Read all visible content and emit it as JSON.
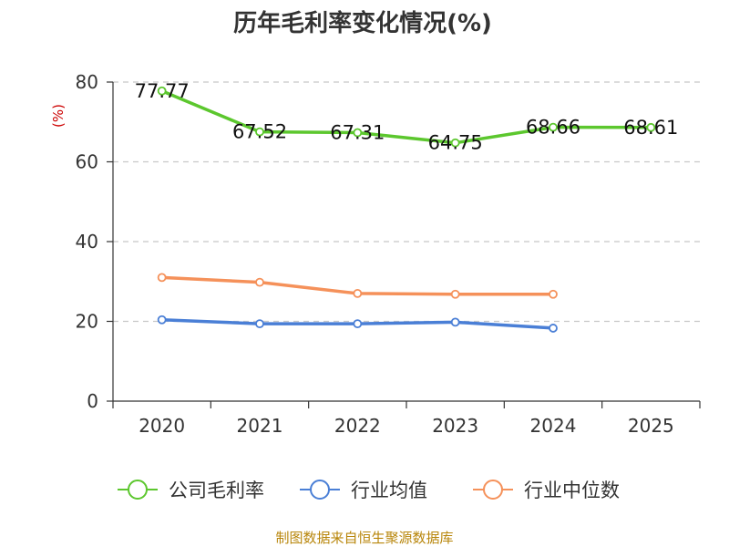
{
  "chart_data": {
    "type": "line",
    "title": "历年毛利率变化情况(%)",
    "ylabel": "(%)",
    "xlabel": "",
    "categories": [
      "2020",
      "2021",
      "2022",
      "2023",
      "2024",
      "2025"
    ],
    "ylim": [
      0,
      80
    ],
    "yticks": [
      0,
      20,
      40,
      60,
      80
    ],
    "grid": true,
    "legend_position": "bottom",
    "series": [
      {
        "name": "公司毛利率",
        "color": "#5cc72e",
        "values": [
          77.77,
          67.52,
          67.31,
          64.75,
          68.66,
          68.61
        ],
        "labels": [
          "77.77",
          "67.52",
          "67.31",
          "64.75",
          "68.66",
          "68.61"
        ]
      },
      {
        "name": "行业均值",
        "color": "#4a7fd6",
        "values": [
          20.4,
          19.4,
          19.4,
          19.8,
          18.3,
          null
        ]
      },
      {
        "name": "行业中位数",
        "color": "#f5915a",
        "values": [
          31.0,
          29.8,
          27.0,
          26.8,
          26.8,
          null
        ]
      }
    ]
  },
  "source": "制图数据来自恒生聚源数据库"
}
